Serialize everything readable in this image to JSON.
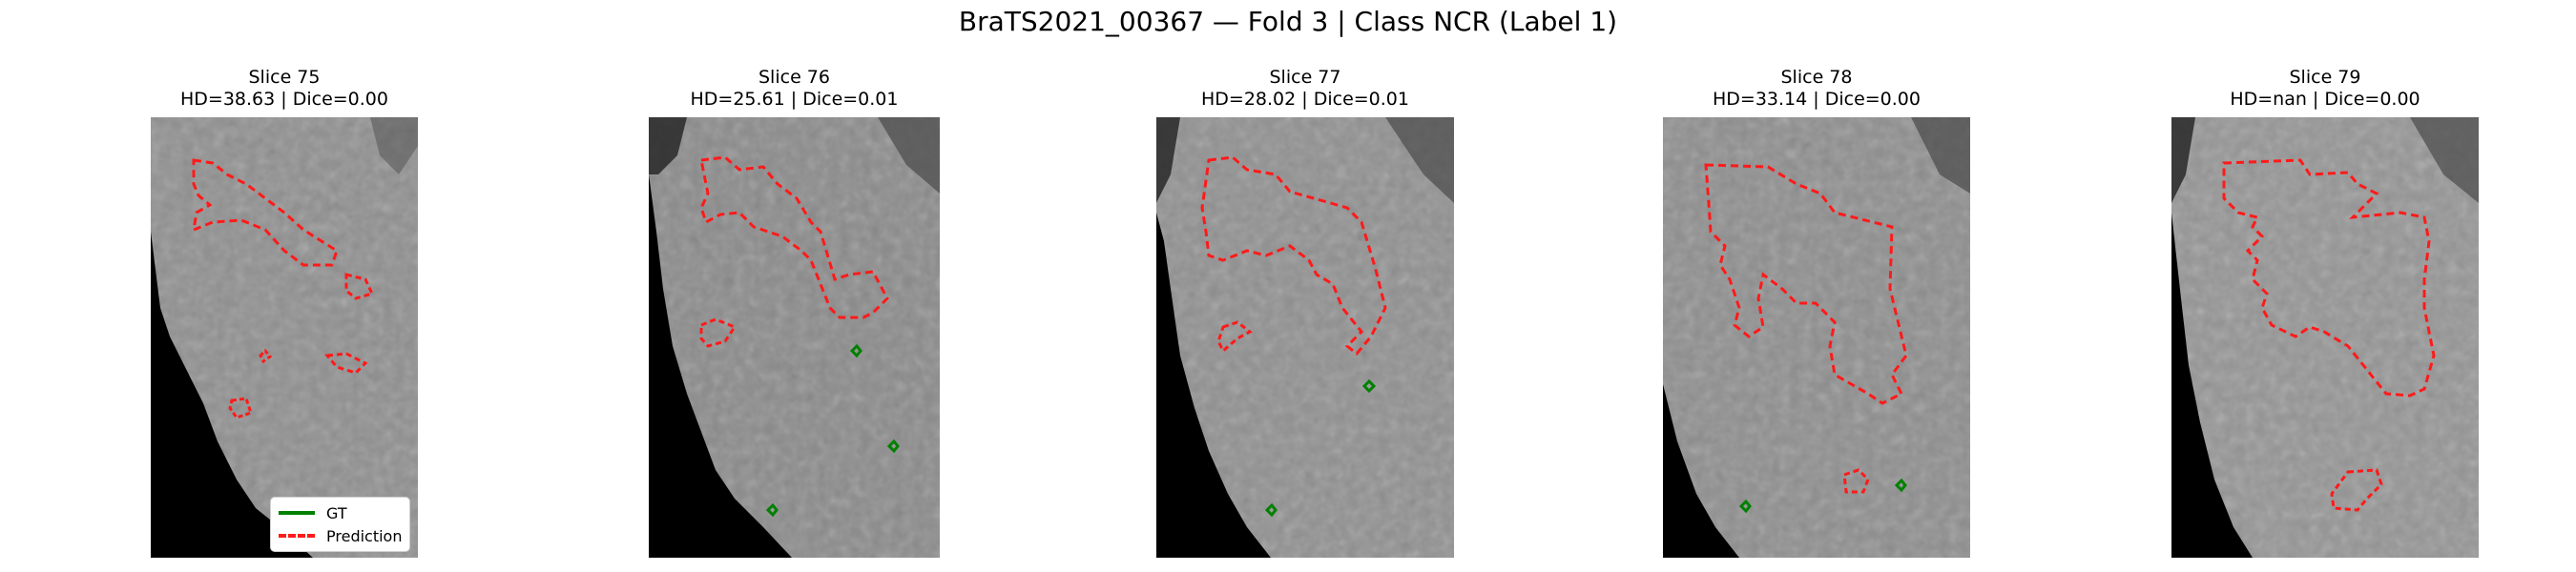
{
  "figure": {
    "title": "BraTS2021_00367 — Fold 3 | Class NCR (Label 1)"
  },
  "panels": [
    {
      "slice_label": "Slice 75",
      "metrics": "HD=38.63 | Dice=0.00"
    },
    {
      "slice_label": "Slice 76",
      "metrics": "HD=25.61 | Dice=0.01"
    },
    {
      "slice_label": "Slice 77",
      "metrics": "HD=28.02 | Dice=0.01"
    },
    {
      "slice_label": "Slice 78",
      "metrics": "HD=33.14 | Dice=0.00"
    },
    {
      "slice_label": "Slice 79",
      "metrics": "HD=nan | Dice=0.00"
    }
  ],
  "legend": {
    "gt_label": "GT",
    "prediction_label": "Prediction"
  },
  "colors": {
    "gt": "#008000",
    "prediction": "#ff1a1a"
  }
}
